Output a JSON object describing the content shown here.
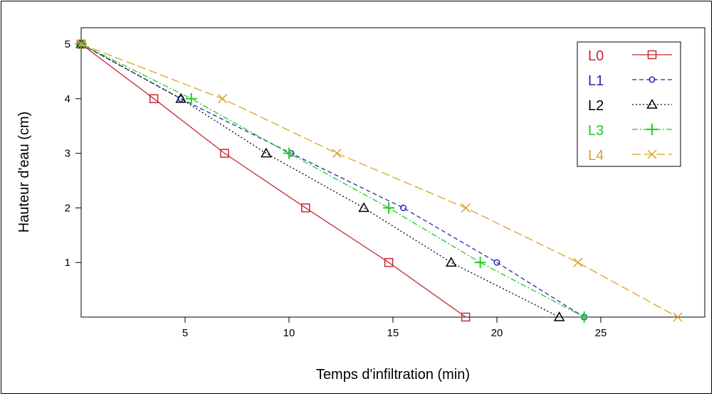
{
  "chart_data": {
    "type": "line",
    "title": "",
    "xlabel": "Temps d'infiltration (min)",
    "ylabel": "Hauteur d'eau (cm)",
    "xlim": [
      0,
      30
    ],
    "ylim": [
      0,
      5.3
    ],
    "xticks": [
      5,
      10,
      15,
      20,
      25
    ],
    "yticks": [
      1,
      2,
      3,
      4,
      5
    ],
    "grid": false,
    "legend_position": "top-right",
    "series": [
      {
        "name": "L0",
        "color": "#c8282d",
        "marker": "square",
        "line": "solid",
        "x": [
          0,
          3.5,
          6.9,
          10.8,
          14.8,
          18.5
        ],
        "y": [
          5,
          4,
          3,
          2,
          1,
          0
        ]
      },
      {
        "name": "L1",
        "color": "#2a2aa8",
        "marker": "circle",
        "line": "dashed",
        "x": [
          0,
          4.8,
          10.1,
          15.5,
          20.0,
          24.2
        ],
        "y": [
          5,
          4,
          3,
          2,
          1,
          0
        ]
      },
      {
        "name": "L2",
        "color": "#000000",
        "marker": "triangle",
        "line": "dotted",
        "x": [
          0,
          4.8,
          8.9,
          13.6,
          17.8,
          23.0
        ],
        "y": [
          5,
          4,
          3,
          2,
          1,
          0
        ]
      },
      {
        "name": "L3",
        "color": "#22cc22",
        "marker": "plus",
        "line": "dashdot",
        "x": [
          0,
          5.3,
          10.0,
          14.8,
          19.2,
          24.2
        ],
        "y": [
          5,
          4,
          3,
          2,
          1,
          0
        ]
      },
      {
        "name": "L4",
        "color": "#d9a520",
        "marker": "cross",
        "line": "longdash",
        "x": [
          0,
          6.8,
          12.3,
          18.5,
          23.9,
          28.7
        ],
        "y": [
          5,
          4,
          3,
          2,
          1,
          0
        ]
      }
    ]
  }
}
